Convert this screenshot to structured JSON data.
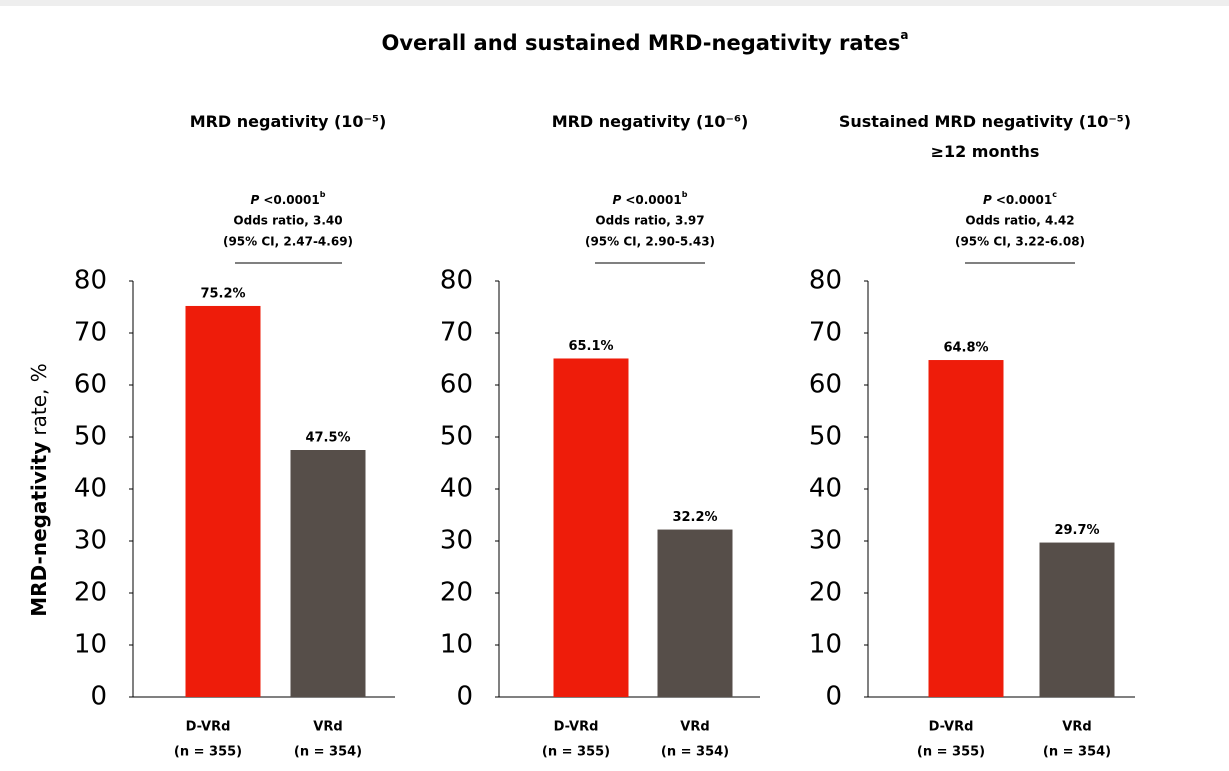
{
  "title": {
    "text": "Overall and sustained MRD-negativity rates",
    "note": "a"
  },
  "ylabel": {
    "bold": "MRD-negativity",
    "regular": "rate, %"
  },
  "chart_data": [
    {
      "type": "bar",
      "title": "MRD negativity (10⁻⁵)",
      "annotation": {
        "p_symbol": "P",
        "p_text": "<0.0001",
        "p_note": "b",
        "odds_ratio": "Odds ratio,  3.40",
        "ci": "(95% CI, 2.47-4.69)"
      },
      "categories": [
        "D-VRd",
        "VRd"
      ],
      "category_notes": [
        "(n = 355)",
        "(n = 354)"
      ],
      "values": [
        75.2,
        47.5
      ],
      "value_labels": [
        "75.2%",
        "47.5%"
      ],
      "colors": [
        "#ee1c0a",
        "#564e49"
      ],
      "ylim": [
        0,
        80
      ],
      "yticks": [
        0,
        10,
        20,
        30,
        40,
        50,
        60,
        70,
        80
      ]
    },
    {
      "type": "bar",
      "title": "MRD negativity (10⁻⁶)",
      "annotation": {
        "p_symbol": "P",
        "p_text": "<0.0001",
        "p_note": "b",
        "odds_ratio": "Odds ratio,  3.97",
        "ci": "(95% CI, 2.90-5.43)"
      },
      "categories": [
        "D-VRd",
        "VRd"
      ],
      "category_notes": [
        "(n = 355)",
        "(n = 354)"
      ],
      "values": [
        65.1,
        32.2
      ],
      "value_labels": [
        "65.1%",
        "32.2%"
      ],
      "colors": [
        "#ee1c0a",
        "#564e49"
      ],
      "ylim": [
        0,
        80
      ],
      "yticks": [
        0,
        10,
        20,
        30,
        40,
        50,
        60,
        70,
        80
      ]
    },
    {
      "type": "bar",
      "title": "Sustained MRD negativity (10⁻⁵) ≥12 months",
      "annotation": {
        "p_symbol": "P",
        "p_text": "<0.0001",
        "p_note": "c",
        "odds_ratio": "Odds ratio,  4.42",
        "ci": "(95% CI, 3.22-6.08)"
      },
      "categories": [
        "D-VRd",
        "VRd"
      ],
      "category_notes": [
        "(n = 355)",
        "(n = 354)"
      ],
      "values": [
        64.8,
        29.7
      ],
      "value_labels": [
        "64.8%",
        "29.7%"
      ],
      "colors": [
        "#ee1c0a",
        "#564e49"
      ],
      "ylim": [
        0,
        80
      ],
      "yticks": [
        0,
        10,
        20,
        30,
        40,
        50,
        60,
        70,
        80
      ]
    }
  ]
}
